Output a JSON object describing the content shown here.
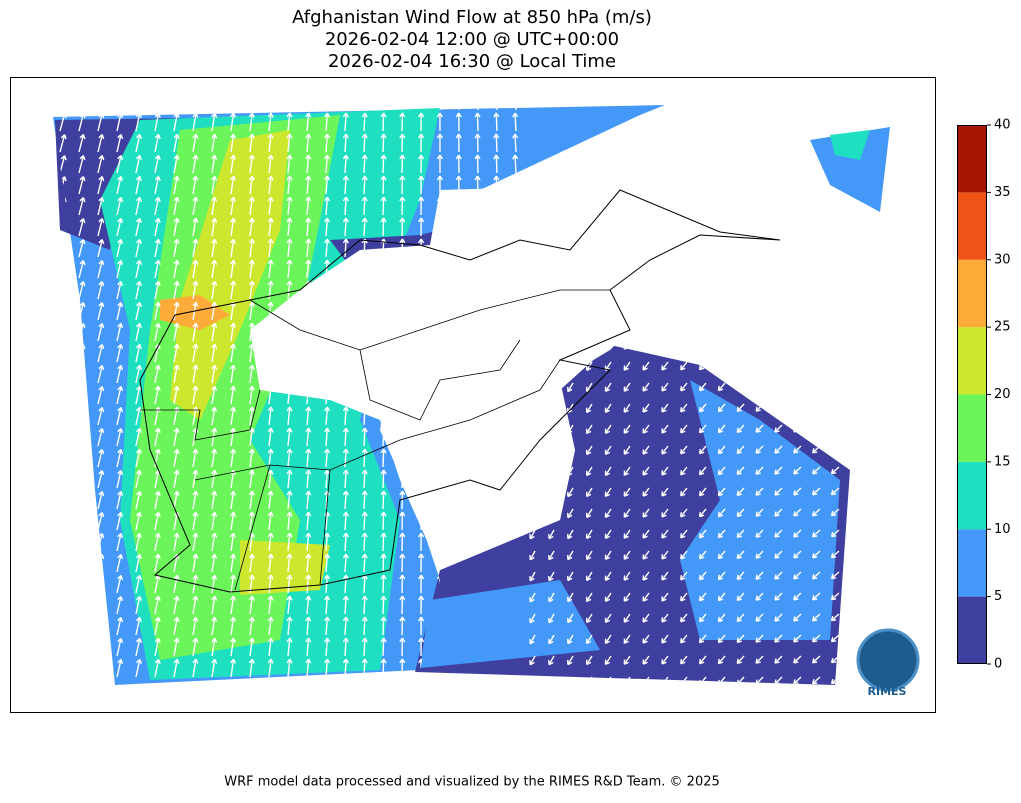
{
  "header": {
    "title": [
      "Afghanistan Wind Flow at 850 hPa (m/s)",
      "2026-02-04 12:00 @ UTC+00:00",
      "2026-02-04 16:30 @ Local Time"
    ]
  },
  "colorbar": {
    "lim": [
      0,
      40
    ],
    "ticks": [
      0,
      5,
      10,
      15,
      20,
      25,
      30,
      35,
      40
    ],
    "colors": [
      "#3f3f9f",
      "#4499f8",
      "#1ee0c0",
      "#6cf55a",
      "#cde62e",
      "#fdab39",
      "#ef5417",
      "#a61604"
    ]
  },
  "logo": "RIMES",
  "footer": "WRF model data processed and visualized by the RIMES R&D Team. © 2025"
}
